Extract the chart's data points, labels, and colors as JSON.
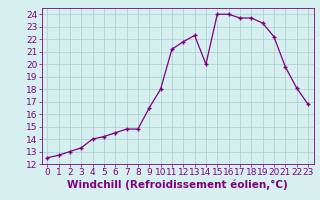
{
  "x": [
    0,
    1,
    2,
    3,
    4,
    5,
    6,
    7,
    8,
    9,
    10,
    11,
    12,
    13,
    14,
    15,
    16,
    17,
    18,
    19,
    20,
    21,
    22,
    23
  ],
  "y": [
    12.5,
    12.7,
    13.0,
    13.3,
    14.0,
    14.2,
    14.5,
    14.8,
    14.8,
    16.5,
    18.0,
    21.2,
    21.8,
    22.3,
    20.0,
    24.0,
    24.0,
    23.7,
    23.7,
    23.3,
    22.2,
    19.8,
    18.1,
    16.8
  ],
  "line_color": "#800080",
  "marker": "+",
  "xlabel": "Windchill (Refroidissement éolien,°C)",
  "xlim": [
    -0.5,
    23.5
  ],
  "ylim": [
    12,
    24.5
  ],
  "yticks": [
    12,
    13,
    14,
    15,
    16,
    17,
    18,
    19,
    20,
    21,
    22,
    23,
    24
  ],
  "xticks": [
    0,
    1,
    2,
    3,
    4,
    5,
    6,
    7,
    8,
    9,
    10,
    11,
    12,
    13,
    14,
    15,
    16,
    17,
    18,
    19,
    20,
    21,
    22,
    23
  ],
  "bg_color": "#d6f0f0",
  "grid_color": "#aacccc",
  "font_color": "#800080",
  "font_size": 6.5,
  "xlabel_size": 7.5
}
